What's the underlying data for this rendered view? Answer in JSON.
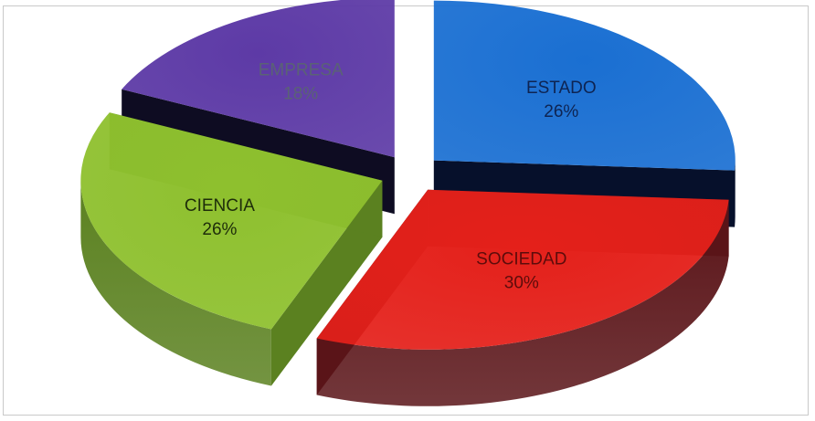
{
  "chart_data": {
    "type": "pie",
    "categories": [
      "ESTADO",
      "SOCIEDAD",
      "CIENCIA",
      "EMPRESA"
    ],
    "values": [
      26,
      30,
      26,
      18
    ],
    "value_labels": [
      "26%",
      "30%",
      "26%",
      "18%"
    ],
    "exploded": true,
    "three_d": true,
    "legend": "none",
    "colors": [
      "#1a6fd2",
      "#e4201a",
      "#8ec02e",
      "#5d3aa6"
    ],
    "side_colors": [
      "#06102b",
      "#5a1418",
      "#5b8120",
      "#0e0c22"
    ],
    "label_colors": [
      "#0e2452",
      "#5d0c0b",
      "#1e2d0a",
      "#5a6275"
    ]
  }
}
